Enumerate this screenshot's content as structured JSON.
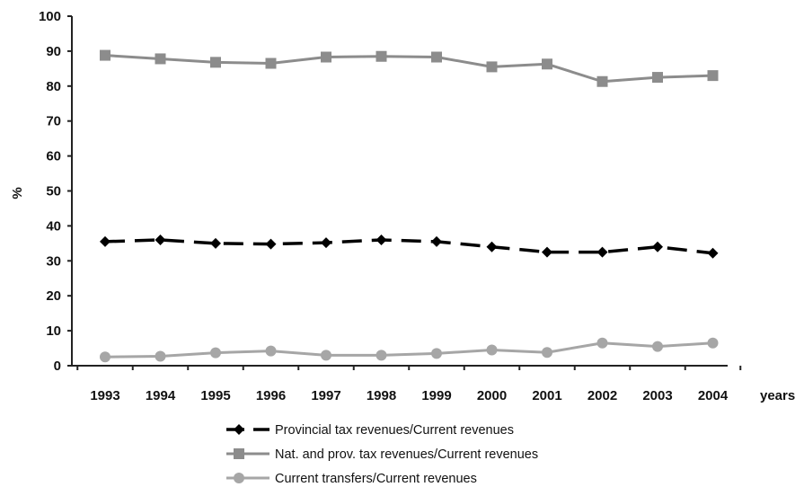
{
  "chart_data": {
    "type": "line",
    "title": "",
    "xlabel": "years",
    "ylabel": "%",
    "ylim": [
      0,
      100
    ],
    "yticks": [
      "0",
      "10",
      "20",
      "30",
      "40",
      "50",
      "60",
      "70",
      "80",
      "90",
      "100"
    ],
    "categories": [
      "1993",
      "1994",
      "1995",
      "1996",
      "1997",
      "1998",
      "1999",
      "2000",
      "2001",
      "2002",
      "2003",
      "2004"
    ],
    "grid": false,
    "legend_position": "bottom",
    "series": [
      {
        "name": "Provincial tax revenues/Current revenues",
        "values": [
          35.5,
          36.0,
          35.0,
          34.8,
          35.2,
          36.0,
          35.5,
          34.0,
          32.5,
          32.5,
          34.0,
          32.2
        ],
        "color": "#000000",
        "marker": "diamond",
        "line_style": "dashed"
      },
      {
        "name": "Nat. and prov. tax revenues/Current revenues",
        "values": [
          88.8,
          87.8,
          86.8,
          86.5,
          88.3,
          88.5,
          88.3,
          85.5,
          86.3,
          81.3,
          82.5,
          83.0
        ],
        "color": "#8c8c8c",
        "marker": "square",
        "line_style": "solid"
      },
      {
        "name": "Current transfers/Current revenues",
        "values": [
          2.5,
          2.7,
          3.7,
          4.2,
          3.0,
          3.0,
          3.5,
          4.5,
          3.8,
          6.5,
          5.5,
          6.5
        ],
        "color": "#a6a6a6",
        "marker": "circle",
        "line_style": "solid"
      }
    ]
  }
}
